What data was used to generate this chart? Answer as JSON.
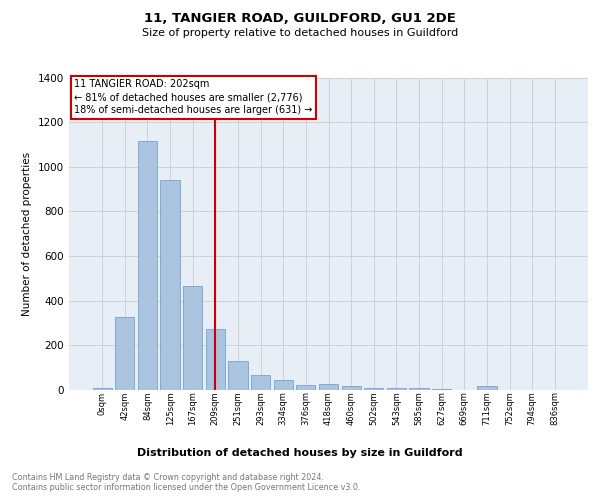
{
  "title1": "11, TANGIER ROAD, GUILDFORD, GU1 2DE",
  "title2": "Size of property relative to detached houses in Guildford",
  "xlabel": "Distribution of detached houses by size in Guildford",
  "ylabel": "Number of detached properties",
  "categories": [
    "0sqm",
    "42sqm",
    "84sqm",
    "125sqm",
    "167sqm",
    "209sqm",
    "251sqm",
    "293sqm",
    "334sqm",
    "376sqm",
    "418sqm",
    "460sqm",
    "502sqm",
    "543sqm",
    "585sqm",
    "627sqm",
    "669sqm",
    "711sqm",
    "752sqm",
    "794sqm",
    "836sqm"
  ],
  "values": [
    10,
    325,
    1115,
    940,
    465,
    275,
    130,
    65,
    46,
    22,
    25,
    17,
    10,
    8,
    7,
    5,
    0,
    18,
    0,
    0,
    0
  ],
  "bar_color": "#aac4e0",
  "bar_edge_color": "#6699cc",
  "vline_x_index": 5,
  "vline_color": "#cc0000",
  "annotation_title": "11 TANGIER ROAD: 202sqm",
  "annotation_line1": "← 81% of detached houses are smaller (2,776)",
  "annotation_line2": "18% of semi-detached houses are larger (631) →",
  "annotation_box_color": "#cc0000",
  "annotation_fill": "#ffffff",
  "ylim": [
    0,
    1400
  ],
  "yticks": [
    0,
    200,
    400,
    600,
    800,
    1000,
    1200,
    1400
  ],
  "grid_color": "#cccccc",
  "bg_color": "#e8eef5",
  "footnote1": "Contains HM Land Registry data © Crown copyright and database right 2024.",
  "footnote2": "Contains public sector information licensed under the Open Government Licence v3.0."
}
